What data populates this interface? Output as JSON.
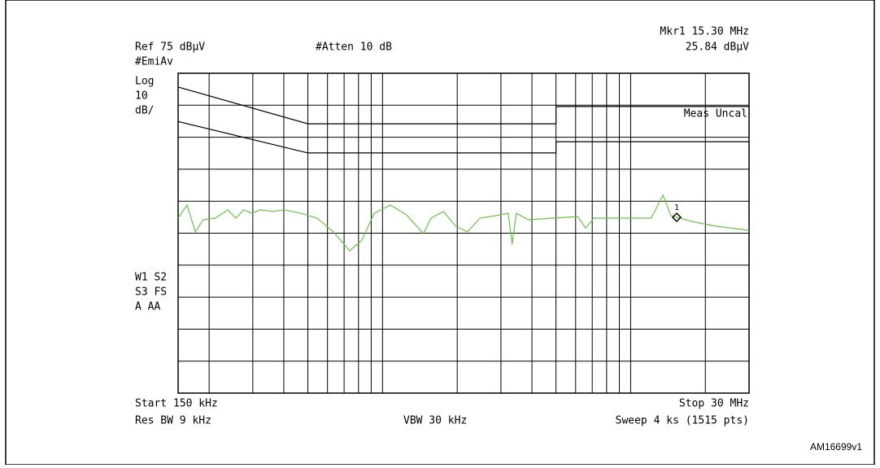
{
  "chart_data": {
    "type": "line",
    "texts": {
      "ref": "Ref 75 dBµV",
      "atten": "#Atten 10 dB",
      "marker": "Mkr1  15.30 MHz",
      "marker_level": "25.84 dBµV",
      "detector": "#EmiAv",
      "scale1": "Log",
      "scale2": "10",
      "scale3": "dB/",
      "uncal": "Meas Uncal",
      "status1": "W1  S2",
      "status2": "S3  FS",
      "status3": "A   AA",
      "start": "Start 150 kHz",
      "stop": "Stop 30 MHz",
      "rbw": "Res BW 9 kHz",
      "vbw": "VBW 30 kHz",
      "sweep": "Sweep 4 ks (1515 pts)",
      "marker_id": "1",
      "figure_id": "AM16699v1"
    },
    "xscale": "log",
    "xlim": [
      0.15,
      30
    ],
    "ylim": [
      -25,
      75
    ],
    "grid": true,
    "series": [
      {
        "color": "#000000",
        "x": [
          0.15,
          0.5,
          5,
          5,
          30
        ],
        "values": [
          70.7,
          59.2,
          59.2,
          64.6,
          64.6
        ]
      },
      {
        "color": "#000000",
        "x": [
          0.15,
          0.5,
          5,
          5,
          30
        ],
        "values": [
          59.9,
          50.1,
          50.1,
          53.6,
          53.6
        ]
      },
      {
        "color": "#6cc04c",
        "x": [
          0.15,
          0.163,
          0.176,
          0.189,
          0.212,
          0.238,
          0.256,
          0.276,
          0.298,
          0.321,
          0.36,
          0.403,
          0.469,
          0.545,
          0.634,
          0.737,
          0.826,
          0.925,
          1.076,
          1.25,
          1.46,
          1.57,
          1.76,
          1.97,
          2.2,
          2.47,
          2.87,
          3.21,
          3.33,
          3.46,
          3.87,
          4.86,
          6.11,
          6.59,
          7.11,
          8.94,
          12.1,
          13.5,
          14.5,
          17.6,
          22,
          30
        ],
        "values": [
          29.7,
          33.8,
          25.4,
          29.2,
          29.7,
          32.3,
          29.7,
          32.3,
          31.2,
          32.3,
          31.8,
          32.3,
          31.2,
          29.7,
          25.4,
          19.5,
          22.8,
          31.2,
          33.8,
          30.7,
          24.9,
          29.7,
          31.8,
          27.2,
          25.4,
          29.7,
          30.5,
          31.2,
          21.6,
          31.2,
          29.2,
          29.7,
          30.2,
          26.6,
          29.7,
          29.7,
          29.7,
          36.9,
          30.5,
          28.7,
          27.2,
          25.9
        ]
      }
    ]
  }
}
